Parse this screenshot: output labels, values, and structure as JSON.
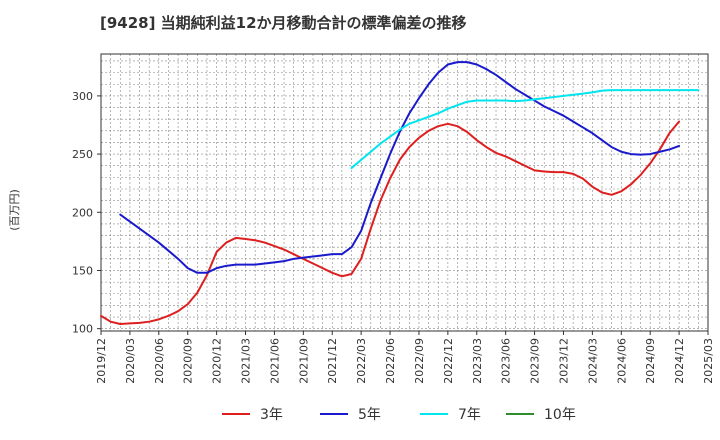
{
  "chart_data": {
    "type": "line",
    "title": "[9428]  当期純利益12か月移動合計の標準偏差の推移",
    "ylabel": "(百万円)",
    "xlabel": "",
    "ylim": [
      98,
      336
    ],
    "yticks": [
      100,
      150,
      200,
      250,
      300
    ],
    "xlim": [
      "2019-12",
      "2025-03"
    ],
    "xticks": [
      "2019/12",
      "2020/03",
      "2020/06",
      "2020/09",
      "2020/12",
      "2021/03",
      "2021/06",
      "2021/09",
      "2021/12",
      "2022/03",
      "2022/06",
      "2022/09",
      "2022/12",
      "2023/03",
      "2023/06",
      "2023/09",
      "2023/12",
      "2024/03",
      "2024/06",
      "2024/09",
      "2024/12",
      "2025/03"
    ],
    "grid": true,
    "legend_position": "bottom",
    "series": [
      {
        "name": "3年",
        "color": "#dd1f1f",
        "start": "2019-12",
        "values": [
          111,
          106,
          104,
          104.5,
          105,
          106,
          108,
          111,
          115,
          121,
          131,
          146,
          166,
          174,
          178,
          177,
          176,
          174,
          171,
          168,
          164,
          160,
          156,
          152,
          148,
          145,
          147,
          160,
          186,
          210,
          229,
          245,
          256,
          264,
          270,
          274,
          276,
          274,
          269,
          262,
          256,
          251,
          248,
          244,
          240,
          236,
          235,
          234.5,
          234.5,
          233,
          229,
          222,
          217,
          215,
          218,
          224,
          232,
          242,
          254,
          268,
          278
        ]
      },
      {
        "name": "5年",
        "color": "#1a1acc",
        "start": "2020-02",
        "values": [
          198,
          192,
          186,
          180,
          174,
          167,
          160,
          152,
          148,
          148,
          152,
          154,
          155,
          155,
          155,
          156,
          157,
          158,
          160,
          161,
          162,
          163,
          164,
          164,
          170,
          184,
          208,
          229,
          250,
          269,
          285,
          298,
          310,
          320,
          327,
          329,
          329,
          327,
          323,
          318,
          312,
          306,
          301,
          296,
          291,
          287,
          283,
          278,
          273,
          268,
          262,
          256,
          252,
          250,
          249.5,
          250,
          252,
          254,
          257
        ]
      },
      {
        "name": "7年",
        "color": "#00e5ee",
        "start": "2022-02",
        "values": [
          238,
          245,
          252,
          259,
          265,
          271,
          276,
          279,
          282,
          285,
          289,
          292,
          295,
          296,
          296,
          296,
          296,
          295.5,
          296,
          297,
          298,
          299,
          300,
          301,
          302,
          303,
          304.5,
          305,
          305,
          305,
          305,
          305,
          305,
          305,
          305,
          305,
          305
        ]
      },
      {
        "name": "10年",
        "color": "#2e8b2e",
        "start": "2024-12",
        "values": []
      }
    ]
  }
}
